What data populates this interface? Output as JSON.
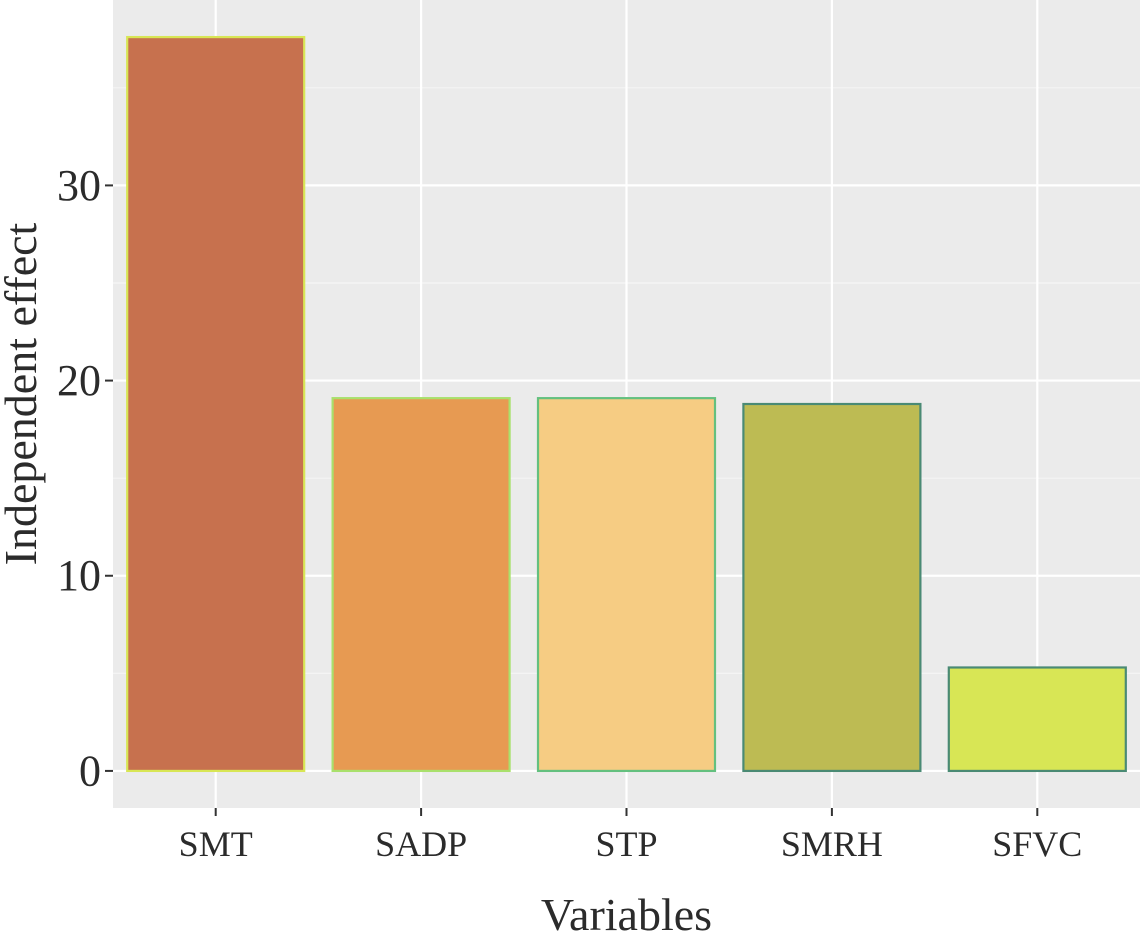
{
  "chart_data": {
    "type": "bar",
    "title": "",
    "xlabel": "Variables",
    "ylabel": "Independent effect",
    "categories": [
      "SMT",
      "SADP",
      "STP",
      "SMRH",
      "SFVC"
    ],
    "values": [
      37.6,
      19.1,
      19.1,
      18.8,
      5.3
    ],
    "ylim": [
      -1.9,
      39.5
    ],
    "yticks": [
      0,
      10,
      20,
      30
    ],
    "ytick_labels": [
      "0",
      "10",
      "20",
      "30"
    ],
    "grid": true,
    "legend": "none",
    "colors": {
      "panel_bg": "#ebebeb",
      "grid_major": "#ffffff",
      "grid_minor": "#f5f5f5",
      "tick": "#333333",
      "text": "#2b2b2b"
    },
    "bar_fills": [
      "#c7714e",
      "#e79a52",
      "#f6cc83",
      "#bdbb53",
      "#d8e655"
    ],
    "bar_strokes": [
      "#d8e655",
      "#a9e06c",
      "#64c07f",
      "#4a8a74",
      "#4a8a74"
    ]
  }
}
